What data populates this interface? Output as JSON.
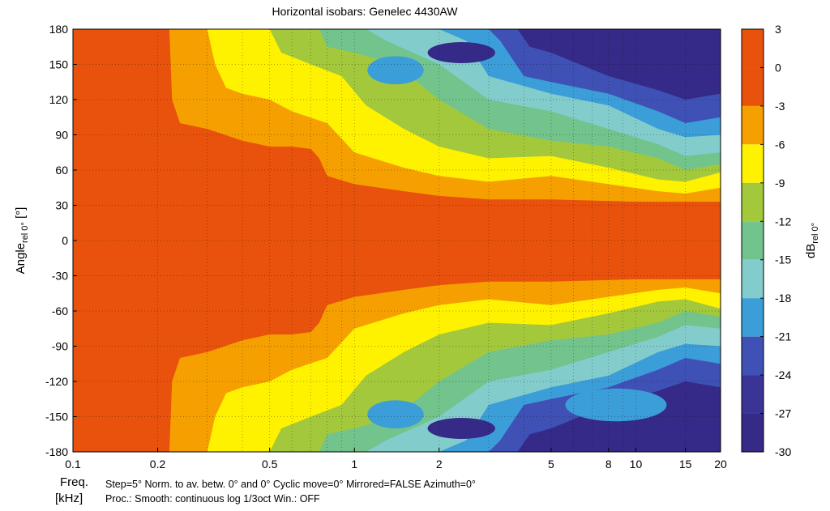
{
  "chart_data": {
    "type": "heatmap",
    "title": "Horizontal isobars: Genelec  4430AW",
    "ylabel_main": "Angle",
    "ylabel_sub": "rel 0°",
    "ylabel_unit": " [°]",
    "xlabel_line1": "Freq.",
    "xlabel_line2": "[kHz]",
    "colorbar_label_main": "dB",
    "colorbar_label_sub": "rel 0°",
    "x_scale": "log",
    "xlim": [
      0.1,
      20
    ],
    "ylim": [
      -180,
      180
    ],
    "x_ticks": [
      {
        "value": 0.1,
        "label": "0.1"
      },
      {
        "value": 0.2,
        "label": "0.2"
      },
      {
        "value": 0.5,
        "label": "0.5"
      },
      {
        "value": 1,
        "label": "1"
      },
      {
        "value": 2,
        "label": "2"
      },
      {
        "value": 5,
        "label": "5"
      },
      {
        "value": 8,
        "label": "8"
      },
      {
        "value": 10,
        "label": "10"
      },
      {
        "value": 15,
        "label": "15"
      },
      {
        "value": 20,
        "label": "20"
      }
    ],
    "x_grid": [
      0.2,
      0.3,
      0.4,
      0.5,
      0.6,
      0.7,
      0.8,
      0.9,
      1,
      2,
      3,
      4,
      5,
      6,
      7,
      8,
      9,
      10,
      15
    ],
    "y_ticks": [
      180,
      150,
      120,
      90,
      60,
      30,
      0,
      -30,
      -60,
      -90,
      -120,
      -150,
      -180
    ],
    "colorbar_ticks": [
      3,
      0,
      -3,
      -6,
      -9,
      -12,
      -15,
      -18,
      -21,
      -24,
      -27,
      -30
    ],
    "levels": [
      {
        "min": -3,
        "max": 3,
        "color": "#e8520c"
      },
      {
        "min": -6,
        "max": -3,
        "color": "#f5a000"
      },
      {
        "min": -9,
        "max": -6,
        "color": "#fff200"
      },
      {
        "min": -12,
        "max": -9,
        "color": "#a4c83c"
      },
      {
        "min": -15,
        "max": -12,
        "color": "#72c38c"
      },
      {
        "min": -18,
        "max": -15,
        "color": "#83cccc"
      },
      {
        "min": -21,
        "max": -18,
        "color": "#3c9ed8"
      },
      {
        "min": -24,
        "max": -21,
        "color": "#3f51b5"
      },
      {
        "min": -30,
        "max": -24,
        "color": "#352a87"
      }
    ],
    "colorbar_colors": [
      "#e8520c",
      "#e8520c",
      "#f5a000",
      "#fff200",
      "#a4c83c",
      "#72c38c",
      "#83cccc",
      "#3c9ed8",
      "#3f51b5",
      "#3a3497",
      "#352a87"
    ],
    "isobar_contours": [
      {
        "level": -3,
        "points": [
          [
            0.1,
            180
          ],
          [
            0.22,
            180
          ],
          [
            0.225,
            120
          ],
          [
            0.24,
            100
          ],
          [
            0.3,
            95
          ],
          [
            0.4,
            85
          ],
          [
            0.5,
            80
          ],
          [
            0.6,
            80
          ],
          [
            0.7,
            78
          ],
          [
            0.75,
            70
          ],
          [
            0.8,
            55
          ],
          [
            1,
            48
          ],
          [
            1.5,
            42
          ],
          [
            2,
            38
          ],
          [
            3,
            35
          ],
          [
            5,
            35
          ],
          [
            10,
            33
          ],
          [
            15,
            33
          ],
          [
            20,
            33
          ]
        ]
      },
      {
        "level": -6,
        "points": [
          [
            0.1,
            180
          ],
          [
            0.3,
            180
          ],
          [
            0.32,
            150
          ],
          [
            0.35,
            130
          ],
          [
            0.4,
            125
          ],
          [
            0.5,
            120
          ],
          [
            0.6,
            110
          ],
          [
            0.8,
            100
          ],
          [
            1,
            75
          ],
          [
            1.5,
            62
          ],
          [
            2,
            55
          ],
          [
            3,
            50
          ],
          [
            5,
            55
          ],
          [
            8,
            48
          ],
          [
            12,
            42
          ],
          [
            15,
            40
          ],
          [
            20,
            45
          ]
        ]
      },
      {
        "level": -9,
        "points": [
          [
            0.1,
            180
          ],
          [
            0.5,
            180
          ],
          [
            0.55,
            160
          ],
          [
            0.7,
            150
          ],
          [
            0.9,
            140
          ],
          [
            1.1,
            115
          ],
          [
            1.5,
            95
          ],
          [
            2,
            80
          ],
          [
            3,
            70
          ],
          [
            5,
            72
          ],
          [
            8,
            62
          ],
          [
            12,
            52
          ],
          [
            15,
            50
          ],
          [
            20,
            58
          ]
        ]
      },
      {
        "level": -12,
        "points": [
          [
            0.1,
            180
          ],
          [
            0.75,
            180
          ],
          [
            0.8,
            165
          ],
          [
            1,
            160
          ],
          [
            1.4,
            150
          ],
          [
            2,
            120
          ],
          [
            3,
            95
          ],
          [
            5,
            85
          ],
          [
            8,
            80
          ],
          [
            12,
            70
          ],
          [
            15,
            60
          ],
          [
            20,
            65
          ]
        ]
      },
      {
        "level": -15,
        "points": [
          [
            0.1,
            180
          ],
          [
            1.1,
            180
          ],
          [
            1.3,
            170
          ],
          [
            2,
            150
          ],
          [
            3,
            120
          ],
          [
            5,
            110
          ],
          [
            8,
            95
          ],
          [
            12,
            82
          ],
          [
            15,
            72
          ],
          [
            20,
            75
          ]
        ]
      },
      {
        "level": -18,
        "points": [
          [
            0.1,
            180
          ],
          [
            2,
            180
          ],
          [
            2.5,
            170
          ],
          [
            3,
            140
          ],
          [
            5,
            125
          ],
          [
            8,
            115
          ],
          [
            12,
            95
          ],
          [
            15,
            88
          ],
          [
            20,
            90
          ]
        ]
      },
      {
        "level": -21,
        "points": [
          [
            0.1,
            180
          ],
          [
            3,
            180
          ],
          [
            3.3,
            170
          ],
          [
            4,
            140
          ],
          [
            5,
            135
          ],
          [
            8,
            125
          ],
          [
            12,
            110
          ],
          [
            15,
            100
          ],
          [
            20,
            105
          ]
        ]
      },
      {
        "level": -24,
        "points": [
          [
            0.1,
            180
          ],
          [
            3.8,
            180
          ],
          [
            4.2,
            165
          ],
          [
            5,
            160
          ],
          [
            8,
            140
          ],
          [
            12,
            128
          ],
          [
            15,
            120
          ],
          [
            20,
            125
          ]
        ]
      }
    ],
    "islands": [
      {
        "level": -24,
        "x": 2.4,
        "y": 160,
        "rx": 0.12,
        "ry": 9
      },
      {
        "level": -18,
        "x": 1.4,
        "y": 145,
        "rx": 0.1,
        "ry": 12
      },
      {
        "level": -24,
        "x": 2.4,
        "y": -160,
        "rx": 0.12,
        "ry": 9
      },
      {
        "level": -18,
        "x": 1.4,
        "y": -148,
        "rx": 0.1,
        "ry": 12
      },
      {
        "level": -18,
        "x": 8.5,
        "y": -140,
        "rx": 0.18,
        "ry": 14
      }
    ]
  },
  "footer": {
    "line1": "Step=5°    Norm. to av. betw. 0° and 0°    Cyclic move=0°    Mirrored=FALSE    Azimuth=0°",
    "line2": "Proc.: Smooth: continuous log 1/3oct    Win.: OFF"
  }
}
